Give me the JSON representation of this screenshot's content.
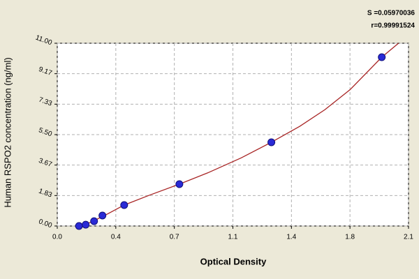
{
  "chart_data": {
    "type": "scatter",
    "xlabel": "Optical Density",
    "ylabel": "Human RSPO2 concentration (ng/ml)",
    "annotations": [
      "S =0.05970036",
      "r=0.99991524"
    ],
    "xlim": [
      0,
      2.1
    ],
    "xticks": [
      {
        "value": 0,
        "label": "0.0"
      },
      {
        "value": 0.35,
        "label": "0.4"
      },
      0.7,
      {
        "value": 1.05,
        "label": "1.1"
      },
      1.4,
      {
        "value": 1.75,
        "label": "1.8"
      },
      2.1
    ],
    "ylim": [
      0,
      11
    ],
    "yticks": [
      {
        "value": 0,
        "label": "0.00"
      },
      {
        "value": 1.833,
        "label": "1.83"
      },
      {
        "value": 3.667,
        "label": "3.67"
      },
      {
        "value": 5.5,
        "label": "5.50"
      },
      {
        "value": 7.333,
        "label": "7.33"
      },
      {
        "value": 9.167,
        "label": "9.17"
      },
      {
        "value": 11,
        "label": "11.00"
      }
    ],
    "grid": true,
    "series": [
      {
        "style": "markers",
        "color": "#2a2ad6",
        "x": [
          0.13,
          0.17,
          0.22,
          0.27,
          0.4,
          0.73,
          1.28,
          1.94
        ],
        "values": [
          0,
          0.08,
          0.29,
          0.63,
          1.26,
          2.52,
          5.04,
          10.16
        ]
      },
      {
        "style": "line",
        "color": "#a82424",
        "x": [
          0.13,
          0.2,
          0.3,
          0.4,
          0.55,
          0.73,
          0.9,
          1.1,
          1.28,
          1.45,
          1.6,
          1.75,
          1.94,
          2.04
        ],
        "values": [
          0,
          0.22,
          0.72,
          1.26,
          1.85,
          2.52,
          3.2,
          4.1,
          5.04,
          6.0,
          7.0,
          8.2,
          10.16,
          11.0
        ]
      }
    ]
  }
}
